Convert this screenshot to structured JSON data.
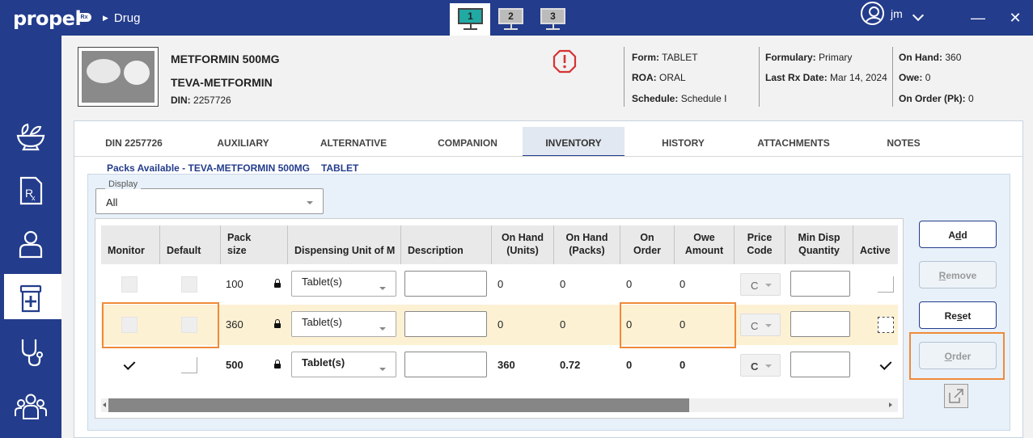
{
  "header": {
    "logo": "propel",
    "logo_badge": "Rx",
    "breadcrumb": "Drug",
    "workstations": [
      "1",
      "2",
      "3"
    ],
    "user": "jm",
    "minimize": "—",
    "close": "✕"
  },
  "drug": {
    "name": "METFORMIN 500MG",
    "brand": "TEVA-METFORMIN",
    "din_label": "DIN:",
    "din_value": "2257726",
    "form_label": "Form:",
    "form_value": "TABLET",
    "roa_label": "ROA:",
    "roa_value": "ORAL",
    "schedule_label": "Schedule:",
    "schedule_value": "Schedule I",
    "formulary_label": "Formulary:",
    "formulary_value": "Primary",
    "last_rx_label": "Last Rx Date:",
    "last_rx_value": "Mar 14, 2024",
    "on_hand_label": "On Hand:",
    "on_hand_value": "360",
    "owe_label": "Owe:",
    "owe_value": "0",
    "on_order_label": "On Order (Pk):",
    "on_order_value": "0"
  },
  "tabs": [
    "DIN 2257726",
    "AUXILIARY",
    "ALTERNATIVE",
    "COMPANION",
    "INVENTORY",
    "HISTORY",
    "ATTACHMENTS",
    "NOTES"
  ],
  "inventory": {
    "legend_title": "Packs Available - TEVA-METFORMIN 500MG",
    "legend_form": "TABLET",
    "display_label": "Display",
    "display_value": "All",
    "columns": {
      "monitor": "Monitor",
      "default": "Default",
      "pack_size_1": "Pack",
      "pack_size_2": "size",
      "dispensing_unit": "Dispensing Unit of M",
      "description": "Description",
      "on_hand_units_1": "On Hand",
      "on_hand_units_2": "(Units)",
      "on_hand_packs_1": "On Hand",
      "on_hand_packs_2": "(Packs)",
      "on_order_1": "On",
      "on_order_2": "Order",
      "owe_amount_1": "Owe",
      "owe_amount_2": "Amount",
      "price_code_1": "Price",
      "price_code_2": "Code",
      "min_disp_1": "Min Disp",
      "min_disp_2": "Quantity",
      "active": "Active"
    },
    "rows": [
      {
        "pack_size": "100",
        "dispensing_unit": "Tablet(s)",
        "on_hand_units": "0",
        "on_hand_packs": "0",
        "on_order": "0",
        "owe_amount": "0",
        "price_code": "C"
      },
      {
        "pack_size": "360",
        "dispensing_unit": "Tablet(s)",
        "on_hand_units": "0",
        "on_hand_packs": "0",
        "on_order": "0",
        "owe_amount": "0",
        "price_code": "C"
      },
      {
        "pack_size": "500",
        "dispensing_unit": "Tablet(s)",
        "on_hand_units": "360",
        "on_hand_packs": "0.72",
        "on_order": "0",
        "owe_amount": "0",
        "price_code": "C"
      }
    ],
    "buttons": {
      "add_pre": "A",
      "add_u": "d",
      "add_post": "d",
      "remove_pre": "",
      "remove_u": "R",
      "remove_post": "emove",
      "reset_pre": "Re",
      "reset_u": "s",
      "reset_post": "et",
      "order_pre": "",
      "order_u": "O",
      "order_post": "rder"
    }
  },
  "colors": {
    "nav": "#233c8c",
    "accent_teal": "#21a9a4",
    "highlight_row": "#fdf1d4",
    "annotation_orange": "#ef8a3a",
    "warning_red": "#d63333"
  }
}
